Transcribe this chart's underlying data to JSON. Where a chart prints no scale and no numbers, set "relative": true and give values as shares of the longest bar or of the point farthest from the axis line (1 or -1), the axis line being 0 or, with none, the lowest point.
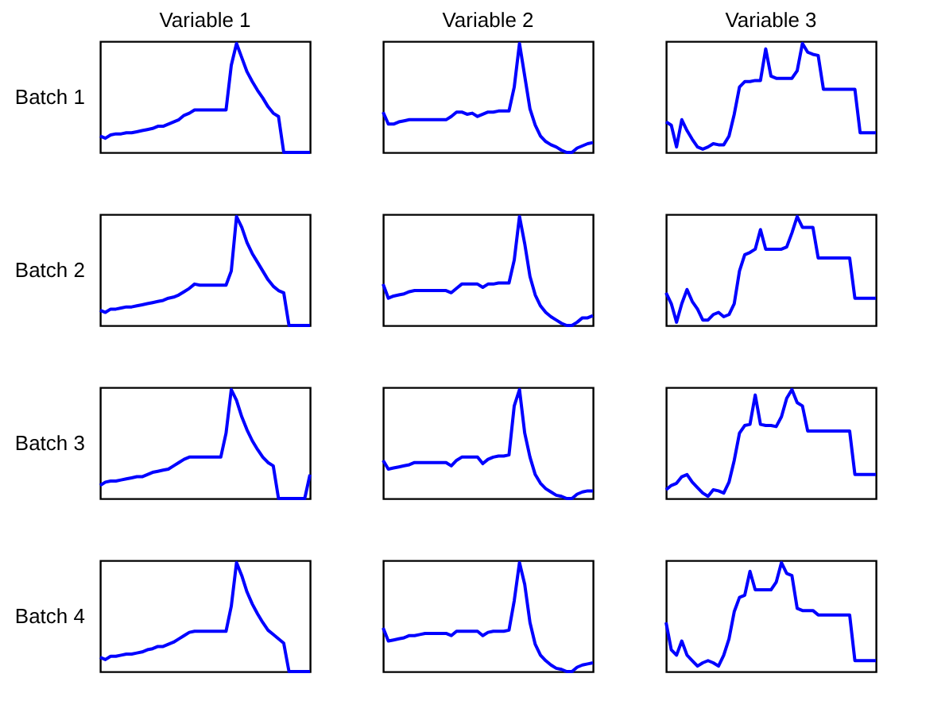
{
  "chart_data": [
    {
      "type": "line",
      "relative": true,
      "tick_labels": false,
      "title": "Variable 1",
      "ylabel": "Batch 1",
      "color": "#0000ff",
      "categories": [
        null,
        null,
        null,
        null,
        null,
        null,
        null,
        null,
        null,
        null,
        null,
        null,
        null,
        null,
        null,
        null,
        null,
        null,
        null,
        null,
        null,
        null,
        null,
        null,
        null,
        null,
        null,
        null,
        null,
        null,
        null,
        null,
        null,
        null,
        null,
        null,
        null,
        null,
        null,
        null,
        null
      ],
      "values": [
        0.15,
        0.13,
        0.16,
        0.17,
        0.17,
        0.18,
        0.18,
        0.19,
        0.2,
        0.21,
        0.22,
        0.24,
        0.24,
        0.26,
        0.28,
        0.3,
        0.34,
        0.36,
        0.39,
        0.39,
        0.39,
        0.39,
        0.39,
        0.39,
        0.39,
        0.8,
        1.0,
        0.87,
        0.74,
        0.65,
        0.57,
        0.5,
        0.42,
        0.36,
        0.33,
        0,
        0,
        0,
        0,
        0,
        0
      ]
    },
    {
      "type": "line",
      "relative": true,
      "tick_labels": false,
      "title": "Variable 2",
      "color": "#0000ff",
      "categories": [
        null,
        null,
        null,
        null,
        null,
        null,
        null,
        null,
        null,
        null,
        null,
        null,
        null,
        null,
        null,
        null,
        null,
        null,
        null,
        null,
        null,
        null,
        null,
        null,
        null,
        null,
        null,
        null,
        null,
        null,
        null,
        null,
        null,
        null,
        null,
        null,
        null,
        null,
        null,
        null,
        null
      ],
      "values": [
        0.37,
        0.26,
        0.26,
        0.28,
        0.29,
        0.3,
        0.3,
        0.3,
        0.3,
        0.3,
        0.3,
        0.3,
        0.3,
        0.33,
        0.37,
        0.37,
        0.35,
        0.36,
        0.33,
        0.35,
        0.37,
        0.37,
        0.38,
        0.38,
        0.38,
        0.6,
        1.0,
        0.7,
        0.4,
        0.25,
        0.15,
        0.1,
        0.07,
        0.05,
        0.02,
        0,
        0,
        0.04,
        0.06,
        0.08,
        0.09
      ]
    },
    {
      "type": "line",
      "relative": true,
      "tick_labels": false,
      "title": "Variable 3",
      "color": "#0000ff",
      "categories": [
        null,
        null,
        null,
        null,
        null,
        null,
        null,
        null,
        null,
        null,
        null,
        null,
        null,
        null,
        null,
        null,
        null,
        null,
        null,
        null,
        null,
        null,
        null,
        null,
        null,
        null,
        null,
        null,
        null,
        null,
        null,
        null,
        null,
        null,
        null,
        null,
        null,
        null,
        null,
        null,
        null
      ],
      "values": [
        0.28,
        0.25,
        0.05,
        0.3,
        0.2,
        0.12,
        0.05,
        0.03,
        0.05,
        0.08,
        0.07,
        0.07,
        0.15,
        0.35,
        0.6,
        0.65,
        0.65,
        0.66,
        0.66,
        0.95,
        0.7,
        0.68,
        0.68,
        0.68,
        0.68,
        0.75,
        1.0,
        0.92,
        0.9,
        0.89,
        0.58,
        0.58,
        0.58,
        0.58,
        0.58,
        0.58,
        0.58,
        0.18,
        0.18,
        0.18,
        0.18
      ]
    },
    {
      "type": "line",
      "relative": true,
      "tick_labels": false,
      "ylabel": "Batch 2",
      "color": "#0000ff",
      "categories": [
        null,
        null,
        null,
        null,
        null,
        null,
        null,
        null,
        null,
        null,
        null,
        null,
        null,
        null,
        null,
        null,
        null,
        null,
        null,
        null,
        null,
        null,
        null,
        null,
        null,
        null,
        null,
        null,
        null,
        null,
        null,
        null,
        null,
        null,
        null,
        null,
        null,
        null,
        null,
        null,
        null
      ],
      "values": [
        0.14,
        0.12,
        0.15,
        0.15,
        0.16,
        0.17,
        0.17,
        0.18,
        0.19,
        0.2,
        0.21,
        0.22,
        0.23,
        0.25,
        0.26,
        0.28,
        0.31,
        0.34,
        0.38,
        0.37,
        0.37,
        0.37,
        0.37,
        0.37,
        0.37,
        0.5,
        1.0,
        0.9,
        0.76,
        0.66,
        0.58,
        0.5,
        0.42,
        0.36,
        0.32,
        0.3,
        0,
        0,
        0,
        0,
        0
      ]
    },
    {
      "type": "line",
      "relative": true,
      "tick_labels": false,
      "color": "#0000ff",
      "categories": [
        null,
        null,
        null,
        null,
        null,
        null,
        null,
        null,
        null,
        null,
        null,
        null,
        null,
        null,
        null,
        null,
        null,
        null,
        null,
        null,
        null,
        null,
        null,
        null,
        null,
        null,
        null,
        null,
        null,
        null,
        null,
        null,
        null,
        null,
        null,
        null,
        null,
        null,
        null,
        null,
        null
      ],
      "values": [
        0.38,
        0.25,
        0.27,
        0.28,
        0.29,
        0.31,
        0.32,
        0.32,
        0.32,
        0.32,
        0.32,
        0.32,
        0.32,
        0.3,
        0.34,
        0.38,
        0.38,
        0.38,
        0.38,
        0.35,
        0.38,
        0.38,
        0.39,
        0.39,
        0.39,
        0.6,
        1.0,
        0.75,
        0.45,
        0.28,
        0.18,
        0.12,
        0.08,
        0.05,
        0.02,
        0,
        0,
        0.03,
        0.07,
        0.07,
        0.09
      ]
    },
    {
      "type": "line",
      "relative": true,
      "tick_labels": false,
      "color": "#0000ff",
      "categories": [
        null,
        null,
        null,
        null,
        null,
        null,
        null,
        null,
        null,
        null,
        null,
        null,
        null,
        null,
        null,
        null,
        null,
        null,
        null,
        null,
        null,
        null,
        null,
        null,
        null,
        null,
        null,
        null,
        null,
        null,
        null,
        null,
        null,
        null,
        null,
        null,
        null,
        null,
        null,
        null,
        null
      ],
      "values": [
        0.3,
        0.2,
        0.03,
        0.2,
        0.33,
        0.22,
        0.15,
        0.05,
        0.05,
        0.1,
        0.12,
        0.08,
        0.1,
        0.2,
        0.5,
        0.65,
        0.67,
        0.7,
        0.88,
        0.7,
        0.7,
        0.7,
        0.7,
        0.72,
        0.85,
        1.0,
        0.9,
        0.9,
        0.9,
        0.62,
        0.62,
        0.62,
        0.62,
        0.62,
        0.62,
        0.62,
        0.25,
        0.25,
        0.25,
        0.25,
        0.25
      ]
    },
    {
      "type": "line",
      "relative": true,
      "tick_labels": false,
      "ylabel": "Batch 3",
      "color": "#0000ff",
      "categories": [
        null,
        null,
        null,
        null,
        null,
        null,
        null,
        null,
        null,
        null,
        null,
        null,
        null,
        null,
        null,
        null,
        null,
        null,
        null,
        null,
        null,
        null,
        null,
        null,
        null,
        null,
        null,
        null,
        null,
        null,
        null,
        null,
        null,
        null,
        null,
        null,
        null,
        null,
        null,
        null,
        null
      ],
      "values": [
        0.12,
        0.15,
        0.16,
        0.16,
        0.17,
        0.18,
        0.19,
        0.2,
        0.2,
        0.22,
        0.24,
        0.25,
        0.26,
        0.27,
        0.3,
        0.33,
        0.36,
        0.38,
        0.38,
        0.38,
        0.38,
        0.38,
        0.38,
        0.38,
        0.6,
        1.0,
        0.9,
        0.75,
        0.63,
        0.53,
        0.45,
        0.38,
        0.33,
        0.3,
        0,
        0,
        0,
        0,
        0,
        0,
        0.22
      ]
    },
    {
      "type": "line",
      "relative": true,
      "tick_labels": false,
      "color": "#0000ff",
      "categories": [
        null,
        null,
        null,
        null,
        null,
        null,
        null,
        null,
        null,
        null,
        null,
        null,
        null,
        null,
        null,
        null,
        null,
        null,
        null,
        null,
        null,
        null,
        null,
        null,
        null,
        null,
        null,
        null,
        null,
        null,
        null,
        null,
        null,
        null,
        null,
        null,
        null,
        null,
        null,
        null,
        null
      ],
      "values": [
        0.35,
        0.27,
        0.28,
        0.29,
        0.3,
        0.31,
        0.33,
        0.33,
        0.33,
        0.33,
        0.33,
        0.33,
        0.33,
        0.3,
        0.35,
        0.38,
        0.38,
        0.38,
        0.38,
        0.32,
        0.36,
        0.38,
        0.39,
        0.39,
        0.4,
        0.85,
        1.0,
        0.6,
        0.38,
        0.22,
        0.14,
        0.09,
        0.06,
        0.03,
        0.02,
        0,
        0,
        0.04,
        0.06,
        0.07,
        0.07
      ]
    },
    {
      "type": "line",
      "relative": true,
      "tick_labels": false,
      "color": "#0000ff",
      "categories": [
        null,
        null,
        null,
        null,
        null,
        null,
        null,
        null,
        null,
        null,
        null,
        null,
        null,
        null,
        null,
        null,
        null,
        null,
        null,
        null,
        null,
        null,
        null,
        null,
        null,
        null,
        null,
        null,
        null,
        null,
        null,
        null,
        null,
        null,
        null,
        null,
        null,
        null,
        null,
        null,
        null
      ],
      "values": [
        0.08,
        0.12,
        0.14,
        0.2,
        0.22,
        0.15,
        0.1,
        0.05,
        0.02,
        0.08,
        0.07,
        0.05,
        0.15,
        0.35,
        0.6,
        0.67,
        0.68,
        0.95,
        0.68,
        0.67,
        0.67,
        0.66,
        0.75,
        0.92,
        1.0,
        0.88,
        0.85,
        0.62,
        0.62,
        0.62,
        0.62,
        0.62,
        0.62,
        0.62,
        0.62,
        0.62,
        0.22,
        0.22,
        0.22,
        0.22,
        0.22
      ]
    },
    {
      "type": "line",
      "relative": true,
      "tick_labels": false,
      "ylabel": "Batch 4",
      "color": "#0000ff",
      "categories": [
        null,
        null,
        null,
        null,
        null,
        null,
        null,
        null,
        null,
        null,
        null,
        null,
        null,
        null,
        null,
        null,
        null,
        null,
        null,
        null,
        null,
        null,
        null,
        null,
        null,
        null,
        null,
        null,
        null,
        null,
        null,
        null,
        null,
        null,
        null,
        null,
        null,
        null,
        null,
        null,
        null
      ],
      "values": [
        0.13,
        0.11,
        0.14,
        0.14,
        0.15,
        0.16,
        0.16,
        0.17,
        0.18,
        0.2,
        0.21,
        0.23,
        0.23,
        0.25,
        0.27,
        0.3,
        0.33,
        0.36,
        0.37,
        0.37,
        0.37,
        0.37,
        0.37,
        0.37,
        0.37,
        0.6,
        1.0,
        0.88,
        0.73,
        0.62,
        0.53,
        0.45,
        0.38,
        0.34,
        0.3,
        0.26,
        0,
        0,
        0,
        0,
        0
      ]
    },
    {
      "type": "line",
      "relative": true,
      "tick_labels": false,
      "color": "#0000ff",
      "categories": [
        null,
        null,
        null,
        null,
        null,
        null,
        null,
        null,
        null,
        null,
        null,
        null,
        null,
        null,
        null,
        null,
        null,
        null,
        null,
        null,
        null,
        null,
        null,
        null,
        null,
        null,
        null,
        null,
        null,
        null,
        null,
        null,
        null,
        null,
        null,
        null,
        null,
        null,
        null,
        null,
        null
      ],
      "values": [
        0.4,
        0.28,
        0.29,
        0.3,
        0.31,
        0.33,
        0.33,
        0.34,
        0.35,
        0.35,
        0.35,
        0.35,
        0.35,
        0.33,
        0.37,
        0.37,
        0.37,
        0.37,
        0.37,
        0.33,
        0.36,
        0.37,
        0.37,
        0.37,
        0.38,
        0.65,
        1.0,
        0.8,
        0.45,
        0.25,
        0.15,
        0.1,
        0.06,
        0.03,
        0.02,
        0,
        0,
        0.04,
        0.06,
        0.07,
        0.08
      ]
    },
    {
      "type": "line",
      "relative": true,
      "tick_labels": false,
      "color": "#0000ff",
      "categories": [
        null,
        null,
        null,
        null,
        null,
        null,
        null,
        null,
        null,
        null,
        null,
        null,
        null,
        null,
        null,
        null,
        null,
        null,
        null,
        null,
        null,
        null,
        null,
        null,
        null,
        null,
        null,
        null,
        null,
        null,
        null,
        null,
        null,
        null,
        null,
        null,
        null,
        null,
        null,
        null,
        null
      ],
      "values": [
        0.45,
        0.2,
        0.15,
        0.28,
        0.15,
        0.1,
        0.05,
        0.08,
        0.1,
        0.08,
        0.05,
        0.15,
        0.3,
        0.55,
        0.68,
        0.7,
        0.92,
        0.75,
        0.75,
        0.75,
        0.75,
        0.82,
        1.0,
        0.9,
        0.88,
        0.58,
        0.56,
        0.56,
        0.56,
        0.52,
        0.52,
        0.52,
        0.52,
        0.52,
        0.52,
        0.52,
        0.1,
        0.1,
        0.1,
        0.1,
        0.1
      ]
    }
  ]
}
